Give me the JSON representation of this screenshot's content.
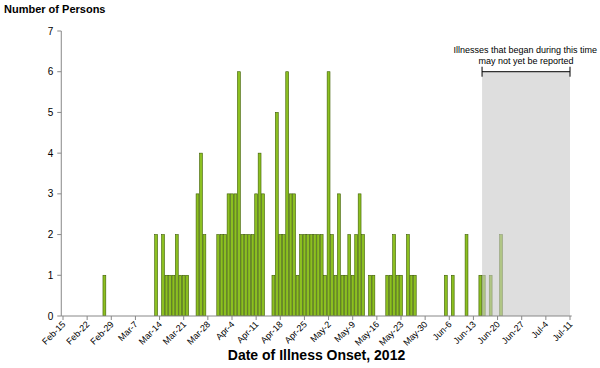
{
  "chart_data": {
    "type": "bar",
    "y_label": "Number of Persons",
    "x_label": "Date of Illness Onset, 2012",
    "categories": [
      "Feb-15",
      null,
      null,
      null,
      null,
      null,
      null,
      "Feb-22",
      null,
      null,
      null,
      null,
      null,
      null,
      "Feb-29",
      null,
      null,
      null,
      null,
      null,
      null,
      "Mar-7",
      null,
      null,
      null,
      null,
      null,
      null,
      "Mar-14",
      null,
      null,
      null,
      null,
      null,
      null,
      "Mar-21",
      null,
      null,
      null,
      null,
      null,
      null,
      "Mar-28",
      null,
      null,
      null,
      null,
      null,
      null,
      "Apr-4",
      null,
      null,
      null,
      null,
      null,
      null,
      "Apr-11",
      null,
      null,
      null,
      null,
      null,
      null,
      "Apr-18",
      null,
      null,
      null,
      null,
      null,
      null,
      "Apr-25",
      null,
      null,
      null,
      null,
      null,
      null,
      "May-2",
      null,
      null,
      null,
      null,
      null,
      null,
      "May-9",
      null,
      null,
      null,
      null,
      null,
      null,
      "May-16",
      null,
      null,
      null,
      null,
      null,
      null,
      "May-23",
      null,
      null,
      null,
      null,
      null,
      null,
      "May-30",
      null,
      null,
      null,
      null,
      null,
      null,
      "Jun-6",
      null,
      null,
      null,
      null,
      null,
      null,
      "Jun-13",
      null,
      null,
      null,
      null,
      null,
      null,
      "Jun-20",
      null,
      null,
      null,
      null,
      null,
      null,
      "Jun-27",
      null,
      null,
      null,
      null,
      null,
      null,
      "Jul-4",
      null,
      null,
      null,
      null,
      null,
      null,
      "Jul-11"
    ],
    "values": [
      0,
      0,
      0,
      0,
      0,
      0,
      0,
      0,
      0,
      0,
      0,
      0,
      1,
      0,
      0,
      0,
      0,
      0,
      0,
      0,
      0,
      0,
      0,
      0,
      0,
      0,
      0,
      2,
      0,
      2,
      1,
      1,
      1,
      2,
      1,
      1,
      1,
      0,
      0,
      3,
      4,
      2,
      0,
      0,
      0,
      2,
      2,
      2,
      3,
      3,
      3,
      6,
      2,
      2,
      2,
      2,
      3,
      4,
      3,
      0,
      0,
      1,
      5,
      2,
      2,
      6,
      3,
      3,
      1,
      2,
      2,
      2,
      2,
      2,
      2,
      2,
      1,
      6,
      2,
      1,
      3,
      1,
      1,
      2,
      1,
      2,
      3,
      2,
      0,
      1,
      1,
      0,
      0,
      0,
      1,
      1,
      2,
      1,
      1,
      0,
      2,
      1,
      1,
      0,
      0,
      0,
      0,
      0,
      0,
      0,
      0,
      1,
      0,
      1,
      0,
      0,
      0,
      2,
      0,
      0,
      0,
      1,
      1,
      0,
      1,
      0,
      0,
      2,
      0,
      0,
      0,
      0,
      0,
      0,
      0,
      0,
      0,
      0,
      0,
      0,
      0,
      0,
      0,
      0,
      0,
      0,
      0,
      0
    ],
    "color": "#8cc021",
    "ylim": [
      0,
      7
    ],
    "yticks": [
      0,
      1,
      2,
      3,
      4,
      5,
      6,
      7
    ],
    "grid": false,
    "annotations": [
      {
        "text": [
          "Illnesses that began during this time",
          "may not yet be reported"
        ],
        "x_start": 121.5,
        "x_end": 147,
        "y_top": 6
      }
    ]
  }
}
